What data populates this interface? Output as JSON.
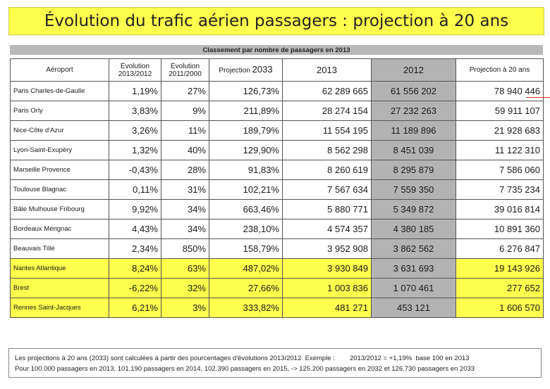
{
  "title": "Évolution du trafic aérien passagers : projection à 20 ans",
  "subtitle": "Classement par nombre de passagers en 2013",
  "headers": {
    "airport": "Aéroport",
    "evo_2013_2012_line1": "Évolution",
    "evo_2013_2012_line2": "2013/2012",
    "evo_2011_2000_line1": "Évolution",
    "evo_2011_2000_line2": "2011/2000",
    "projection_2033_label": "Projection",
    "projection_2033_year": "2033",
    "y2013": "2013",
    "y2012": "2012",
    "projection_20": "Projection à 20 ans"
  },
  "rows": [
    {
      "airport": "Paris Charles-de-Gaulle",
      "evo1": "1,19%",
      "evo2": "27%",
      "proj2033": "126,73%",
      "y2013": "62 289 665",
      "y2012": "61 556 202",
      "proj20": "78 940 446"
    },
    {
      "airport": "Paris Orly",
      "evo1": "3,83%",
      "evo2": "9%",
      "proj2033": "211,89%",
      "y2013": "28 274 154",
      "y2012": "27 232 263",
      "proj20": "59 911 107"
    },
    {
      "airport": "Nice-Côte d'Azur",
      "evo1": "3,26%",
      "evo2": "11%",
      "proj2033": "189,79%",
      "y2013": "11 554 195",
      "y2012": "11 189 896",
      "proj20": "21 928 683"
    },
    {
      "airport": "Lyon-Saint-Exupéry",
      "evo1": "1,32%",
      "evo2": "40%",
      "proj2033": "129,90%",
      "y2013": "8 562 298",
      "y2012": "8 451 039",
      "proj20": "11 122 310"
    },
    {
      "airport": "Marseille Provence",
      "evo1": "-0,43%",
      "evo2": "28%",
      "proj2033": "91,83%",
      "y2013": "8 260 619",
      "y2012": "8 295 879",
      "proj20": "7 586 060"
    },
    {
      "airport": "Toulouse Blagnac",
      "evo1": "0,11%",
      "evo2": "31%",
      "proj2033": "102,21%",
      "y2013": "7 567 634",
      "y2012": "7 559 350",
      "proj20": "7 735 234"
    },
    {
      "airport": "Bâle Mulhouse Fribourg",
      "evo1": "9,92%",
      "evo2": "34%",
      "proj2033": "663,46%",
      "y2013": "5 880 771",
      "y2012": "5 349 872",
      "proj20": "39 016 814"
    },
    {
      "airport": "Bordeaux Mérignac",
      "evo1": "4,43%",
      "evo2": "34%",
      "proj2033": "238,10%",
      "y2013": "4 574 357",
      "y2012": "4 380 185",
      "proj20": "10 891 360"
    },
    {
      "airport": "Beauvais Tillé",
      "evo1": "2,34%",
      "evo2": "850%",
      "proj2033": "158,79%",
      "y2013": "3 952 908",
      "y2012": "3 862 562",
      "proj20": "6 276 847"
    },
    {
      "airport": "Nantes Atlantique",
      "evo1": "8,24%",
      "evo2": "63%",
      "proj2033": "487,02%",
      "y2013": "3 930 849",
      "y2012": "3 631 693",
      "proj20": "19 143 926"
    },
    {
      "airport": "Brest",
      "evo1": "-6,22%",
      "evo2": "32%",
      "proj2033": "27,66%",
      "y2013": "1 003 836",
      "y2012": "1 070 461",
      "proj20": "277 652"
    },
    {
      "airport": "Rennes Saint-Jacques",
      "evo1": "6,21%",
      "evo2": "3%",
      "proj2033": "333,82%",
      "y2013": "481 271",
      "y2012": "453 121",
      "proj20": "1 606 570"
    }
  ],
  "footnote": {
    "line1": "Les projections à 20 ans (2033) sont calculées à partir des pourcentages d'évolutions 2013/2012  Exemple :        2013/2012 = +1,19%  base 100 en 2013",
    "line2": "Pour 100.000 passagers en 2013, 101.190 passagers en 2014, 102.390 passagers en 2015, -> 125.200 passagers en 2032 et 126.730 passagers en 2033"
  },
  "colors": {
    "highlight": "#ffff4d",
    "column_2012": "#b3b3b3"
  }
}
